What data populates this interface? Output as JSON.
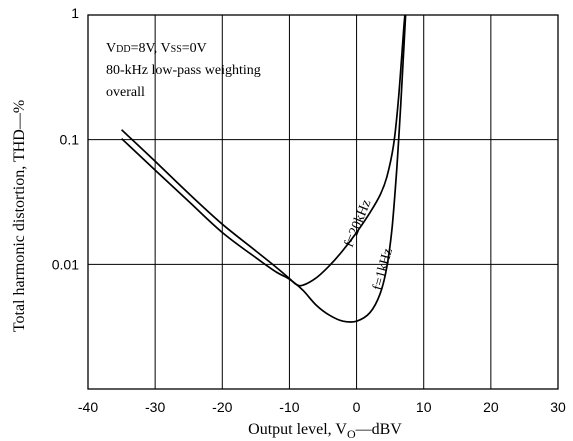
{
  "chart_data": {
    "type": "line",
    "title": "",
    "xlabel": "Output level, V",
    "xlabel_sub": "O",
    "xlabel_unit": "—dBV",
    "ylabel": "Total harmonic distortion, THD—%",
    "xlim": [
      -40,
      30
    ],
    "ylim": [
      0.001,
      1
    ],
    "yscale": "log",
    "grid": true,
    "x_ticks": [
      -40,
      -30,
      -20,
      -10,
      0,
      10,
      20,
      30
    ],
    "x_tick_labels": [
      "-40",
      "-30",
      "-20",
      "-10",
      "0",
      "10",
      "20",
      "30"
    ],
    "y_ticks": [
      0.01,
      0.1,
      1
    ],
    "y_tick_labels": [
      "0.01",
      "0.1",
      "1"
    ],
    "conditions": [
      {
        "parts": [
          {
            "t": "V"
          },
          {
            "t": "DD",
            "small": true
          },
          {
            "t": "=8V, V"
          },
          {
            "t": "SS",
            "small": true
          },
          {
            "t": "=0V"
          }
        ]
      },
      {
        "parts": [
          {
            "t": "80-kHz low-pass weighting"
          }
        ]
      },
      {
        "parts": [
          {
            "t": "overall"
          }
        ]
      }
    ],
    "series": [
      {
        "name": "f=20kHz",
        "color": "#000000",
        "points": [
          [
            -35,
            0.12
          ],
          [
            -30,
            0.067
          ],
          [
            -25,
            0.037
          ],
          [
            -20,
            0.021
          ],
          [
            -15,
            0.0128
          ],
          [
            -12,
            0.0095
          ],
          [
            -10,
            0.0077
          ],
          [
            -9,
            0.0069
          ],
          [
            -8,
            0.0068
          ],
          [
            -6,
            0.0078
          ],
          [
            -4,
            0.0098
          ],
          [
            -2,
            0.013
          ],
          [
            0,
            0.018
          ],
          [
            2,
            0.026
          ],
          [
            3.5,
            0.036
          ],
          [
            4.5,
            0.05
          ],
          [
            5.5,
            0.09
          ],
          [
            6.2,
            0.2
          ],
          [
            6.7,
            0.45
          ],
          [
            7.0,
            0.75
          ],
          [
            7.2,
            1.0
          ]
        ]
      },
      {
        "name": "f=1kHz",
        "color": "#000000",
        "points": [
          [
            -35,
            0.102
          ],
          [
            -30,
            0.057
          ],
          [
            -25,
            0.032
          ],
          [
            -20,
            0.018
          ],
          [
            -15,
            0.0113
          ],
          [
            -12,
            0.0087
          ],
          [
            -10,
            0.0076
          ],
          [
            -8,
            0.0062
          ],
          [
            -6,
            0.0047
          ],
          [
            -4,
            0.0039
          ],
          [
            -2,
            0.0035
          ],
          [
            0,
            0.0035
          ],
          [
            2,
            0.0041
          ],
          [
            3.5,
            0.0058
          ],
          [
            4.5,
            0.0095
          ],
          [
            5.3,
            0.02
          ],
          [
            6.0,
            0.06
          ],
          [
            6.6,
            0.2
          ],
          [
            7.0,
            0.5
          ],
          [
            7.3,
            1.0
          ]
        ]
      }
    ],
    "annotations": [
      {
        "text": "f=20kHz",
        "series": "f=20kHz"
      },
      {
        "text": "f=1kHz",
        "series": "f=1kHz"
      }
    ]
  }
}
